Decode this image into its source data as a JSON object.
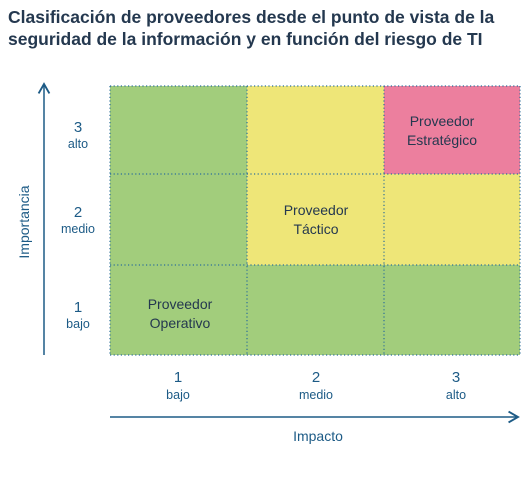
{
  "title": {
    "line1": "Clasificación de proveedores desde el punto de vista de la",
    "line2": "seguridad de la información y en función del riesgo de TI"
  },
  "axes": {
    "x_title": "Impacto",
    "y_title": "Importancia",
    "x_ticks": [
      {
        "num": "1",
        "word": "bajo"
      },
      {
        "num": "2",
        "word": "medio"
      },
      {
        "num": "3",
        "word": "alto"
      }
    ],
    "y_ticks": [
      {
        "num": "3",
        "word": "alto"
      },
      {
        "num": "2",
        "word": "medio"
      },
      {
        "num": "1",
        "word": "bajo"
      }
    ]
  },
  "grid": {
    "rows": [
      {
        "importancia": 3,
        "cells": [
          {
            "impacto": 1,
            "color": "#a2cd7c",
            "label": []
          },
          {
            "impacto": 2,
            "color": "#eee678",
            "label": []
          },
          {
            "impacto": 3,
            "color": "#ec7f9e",
            "label": [
              "Proveedor",
              "Estratégico"
            ]
          }
        ]
      },
      {
        "importancia": 2,
        "cells": [
          {
            "impacto": 1,
            "color": "#a2cd7c",
            "label": []
          },
          {
            "impacto": 2,
            "color": "#eee678",
            "label": [
              "Proveedor",
              "Táctico"
            ]
          },
          {
            "impacto": 3,
            "color": "#eee678",
            "label": []
          }
        ]
      },
      {
        "importancia": 1,
        "cells": [
          {
            "impacto": 1,
            "color": "#a2cd7c",
            "label": [
              "Proveedor",
              "Operativo"
            ]
          },
          {
            "impacto": 2,
            "color": "#a2cd7c",
            "label": []
          },
          {
            "impacto": 3,
            "color": "#a2cd7c",
            "label": []
          }
        ]
      }
    ]
  },
  "colors": {
    "axis": "#1d5b86",
    "grid_line": "#2c6f9a",
    "text": "#24384f"
  }
}
